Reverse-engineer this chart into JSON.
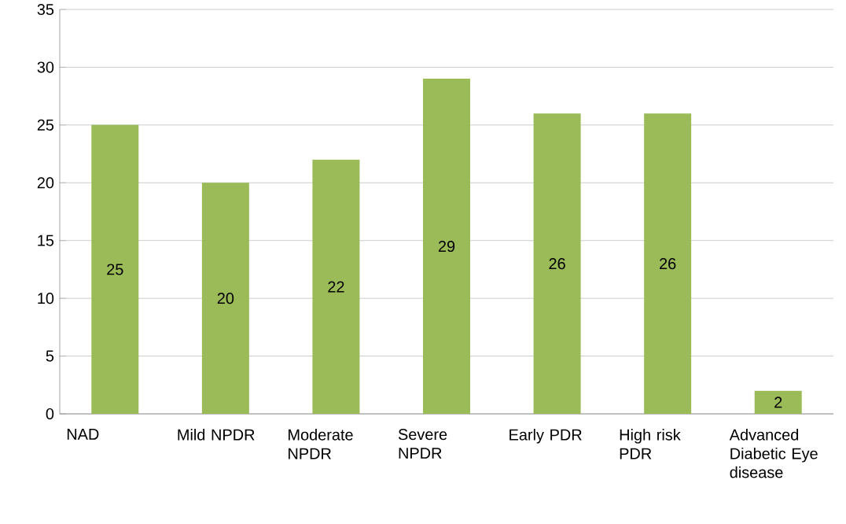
{
  "chart_data": {
    "type": "bar",
    "categories": [
      "NAD",
      "Mild NPDR",
      "Moderate NPDR",
      "Severe NPDR",
      "Early PDR",
      "High risk PDR",
      "Advanced Diabetic Eye disease"
    ],
    "values": [
      25,
      20,
      22,
      29,
      26,
      26,
      2
    ],
    "color": "#9bbb59",
    "ylim": [
      0,
      35
    ],
    "yticks": [
      0,
      5,
      10,
      15,
      20,
      25,
      30,
      35
    ],
    "grid": "y",
    "data_labels": true
  }
}
